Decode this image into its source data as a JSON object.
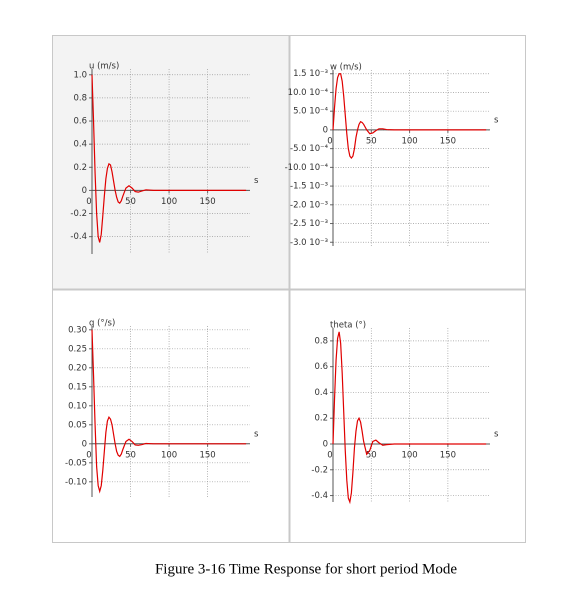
{
  "caption": "Figure 3-16 Time Response for short period Mode",
  "chart_data": [
    {
      "type": "line",
      "ylabel": "u (m/s)",
      "xlabel": "s",
      "color": "#e00000",
      "grid": true,
      "x": [
        0,
        2,
        4,
        6,
        8,
        10,
        12,
        14,
        16,
        18,
        20,
        22,
        24,
        26,
        28,
        30,
        32,
        34,
        36,
        38,
        40,
        44,
        48,
        52,
        56,
        60,
        65,
        70,
        80,
        90,
        100,
        120,
        140,
        160,
        180,
        200
      ],
      "values": [
        1.0,
        0.6,
        0.15,
        -0.2,
        -0.4,
        -0.45,
        -0.38,
        -0.22,
        -0.05,
        0.1,
        0.19,
        0.23,
        0.22,
        0.16,
        0.08,
        0.0,
        -0.06,
        -0.1,
        -0.11,
        -0.09,
        -0.05,
        0.02,
        0.04,
        0.02,
        -0.01,
        -0.015,
        -0.005,
        0.005,
        0,
        0,
        0,
        0,
        0,
        0,
        0,
        0
      ],
      "xlim": [
        0,
        205
      ],
      "xticks": [
        0,
        50,
        100,
        150
      ],
      "ylim": [
        -0.55,
        1.05
      ],
      "yticks": [
        {
          "value": 1.0,
          "label": "1.0"
        },
        0.8,
        0.6,
        0.4,
        0.2,
        0,
        -0.2,
        -0.4
      ]
    },
    {
      "type": "line",
      "ylabel": "w (m/s)",
      "xlabel": "s",
      "color": "#e00000",
      "grid": true,
      "x": [
        0,
        2,
        4,
        6,
        8,
        10,
        12,
        14,
        16,
        18,
        20,
        22,
        24,
        26,
        28,
        30,
        32,
        34,
        36,
        38,
        40,
        44,
        48,
        52,
        56,
        60,
        65,
        70,
        80,
        90,
        100,
        120,
        140,
        160,
        180,
        200
      ],
      "values": [
        0,
        0.0006,
        0.0011,
        0.0014,
        0.0015,
        0.0015,
        0.0013,
        0.0009,
        0.0004,
        -0.0001,
        -0.0005,
        -0.0007,
        -0.00075,
        -0.0007,
        -0.0005,
        -0.0002,
        0.0,
        0.00015,
        0.00022,
        0.0002,
        0.00015,
        0.0,
        -0.0001,
        -8e-05,
        -2e-05,
        3e-05,
        3e-05,
        1e-05,
        0,
        0,
        0,
        0,
        0,
        0,
        0,
        0
      ],
      "xlim": [
        0,
        205
      ],
      "xticks": [
        0,
        50,
        100,
        150
      ],
      "ylim": [
        -0.0031,
        0.0016
      ],
      "yticks": [
        {
          "value": 0.0015,
          "label": "1.5 10⁻³"
        },
        {
          "value": 0.001,
          "label": "10.0 10⁻⁴"
        },
        {
          "value": 0.0005,
          "label": "5.0 10⁻⁴"
        },
        0,
        {
          "value": -0.0005,
          "label": "-5.0 10⁻⁴"
        },
        {
          "value": -0.001,
          "label": "-10.0 10⁻⁴"
        },
        {
          "value": -0.0015,
          "label": "-1.5 10⁻³"
        },
        {
          "value": -0.002,
          "label": "-2.0 10⁻³"
        },
        {
          "value": -0.0025,
          "label": "-2.5 10⁻³"
        },
        {
          "value": -0.003,
          "label": "-3.0 10⁻³"
        }
      ]
    },
    {
      "type": "line",
      "ylabel": "q (°/s)",
      "xlabel": "s",
      "color": "#e00000",
      "grid": true,
      "x": [
        0,
        2,
        4,
        6,
        8,
        10,
        12,
        14,
        16,
        18,
        20,
        22,
        24,
        26,
        28,
        30,
        32,
        34,
        36,
        38,
        40,
        44,
        48,
        52,
        56,
        60,
        65,
        70,
        80,
        90,
        100,
        120,
        140,
        160,
        180,
        200
      ],
      "values": [
        0.3,
        0.18,
        0.05,
        -0.06,
        -0.11,
        -0.125,
        -0.11,
        -0.07,
        -0.02,
        0.03,
        0.06,
        0.07,
        0.065,
        0.05,
        0.025,
        0,
        -0.02,
        -0.03,
        -0.033,
        -0.027,
        -0.015,
        0.006,
        0.012,
        0.006,
        -0.003,
        -0.004,
        -0.002,
        0.001,
        0,
        0,
        0,
        0,
        0,
        0,
        0,
        0
      ],
      "xlim": [
        0,
        205
      ],
      "xticks": [
        0,
        50,
        100,
        150
      ],
      "ylim": [
        -0.14,
        0.31
      ],
      "yticks": [
        {
          "value": 0.3,
          "label": "0.30"
        },
        0.25,
        {
          "value": 0.2,
          "label": "0.20"
        },
        0.15,
        {
          "value": 0.1,
          "label": "0.10"
        },
        0.05,
        0,
        -0.05,
        {
          "value": -0.1,
          "label": "-0.10"
        }
      ]
    },
    {
      "type": "line",
      "ylabel": "theta (°)",
      "xlabel": "s",
      "color": "#e00000",
      "grid": true,
      "x": [
        0,
        2,
        4,
        6,
        8,
        10,
        12,
        14,
        16,
        18,
        20,
        22,
        24,
        26,
        28,
        30,
        32,
        34,
        36,
        38,
        40,
        44,
        48,
        52,
        56,
        60,
        65,
        70,
        80,
        90,
        100,
        120,
        140,
        160,
        180,
        200
      ],
      "values": [
        0,
        0.35,
        0.65,
        0.82,
        0.87,
        0.78,
        0.55,
        0.25,
        -0.05,
        -0.28,
        -0.42,
        -0.45,
        -0.38,
        -0.22,
        -0.03,
        0.1,
        0.18,
        0.2,
        0.17,
        0.1,
        0.02,
        -0.08,
        -0.05,
        0.02,
        0.03,
        0.01,
        -0.01,
        -0.005,
        0,
        0,
        0,
        0,
        0,
        0,
        0,
        0
      ],
      "xlim": [
        0,
        205
      ],
      "xticks": [
        0,
        50,
        100,
        150
      ],
      "ylim": [
        -0.45,
        0.9
      ],
      "yticks": [
        0.8,
        0.6,
        0.4,
        0.2,
        0,
        -0.2,
        -0.4
      ]
    }
  ]
}
